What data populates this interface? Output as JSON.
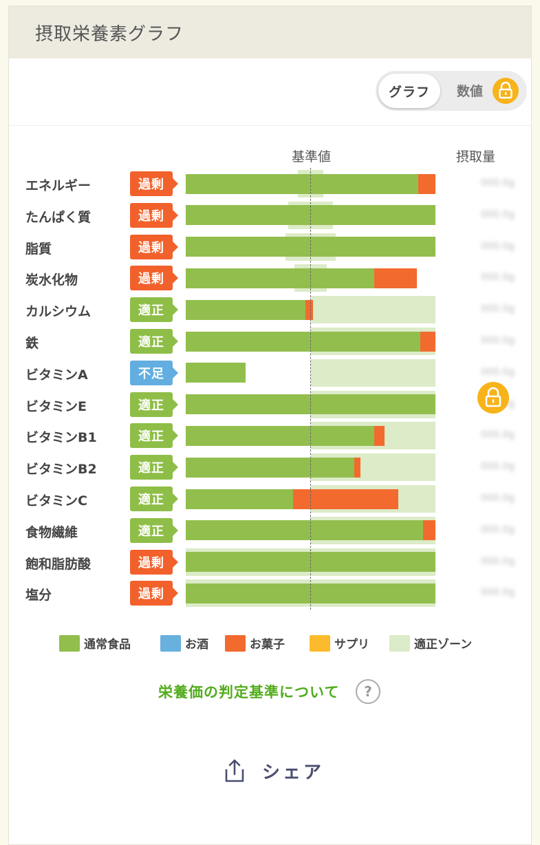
{
  "page": {
    "title": "摂取栄養素グラフ",
    "toggle": {
      "graph_label": "グラフ",
      "number_label": "数値",
      "lock_icon": "lock-icon"
    },
    "columns": {
      "reference": "基準値",
      "intake": "摂取量"
    },
    "criteria_link": "栄養価の判定基準について",
    "help_icon_glyph": "?",
    "share_label": "シェア"
  },
  "colors": {
    "normal_food": "#92be4d",
    "alcohol": "#68b0de",
    "snacks": "#f26a2e",
    "supplement": "#fbbb2c",
    "zone": "#dcebc8",
    "status_excess": "#f2612b",
    "status_ok": "#8ebe47",
    "status_low": "#62aee0",
    "lock": "#f7b31a"
  },
  "chart_data": {
    "type": "bar",
    "orientation": "horizontal",
    "stacked": true,
    "reference_line": 100,
    "xlim": [
      0,
      200
    ],
    "categories": [
      "エネルギー",
      "たんぱく質",
      "脂質",
      "炭水化物",
      "カルシウム",
      "鉄",
      "ビタミンA",
      "ビタミンE",
      "ビタミンB1",
      "ビタミンB2",
      "ビタミンC",
      "食物繊維",
      "飽和脂肪酸",
      "塩分"
    ],
    "status": [
      "過剰",
      "過剰",
      "過剰",
      "過剰",
      "適正",
      "適正",
      "不足",
      "適正",
      "適正",
      "適正",
      "適正",
      "適正",
      "過剰",
      "過剰"
    ],
    "status_type": [
      "excess",
      "excess",
      "excess",
      "excess",
      "ok",
      "ok",
      "low",
      "ok",
      "ok",
      "ok",
      "ok",
      "ok",
      "excess",
      "excess"
    ],
    "series": [
      {
        "name": "通常食品",
        "color": "#92be4d",
        "values": [
          186,
          200,
          200,
          151,
          96,
          188,
          48,
          200,
          151,
          135,
          86,
          190,
          200,
          200
        ]
      },
      {
        "name": "お酒",
        "color": "#68b0de",
        "values": [
          0,
          0,
          0,
          0,
          0,
          0,
          0,
          0,
          0,
          0,
          0,
          0,
          0,
          0
        ]
      },
      {
        "name": "お菓子",
        "color": "#f26a2e",
        "values": [
          14,
          0,
          0,
          34,
          6,
          12,
          0,
          0,
          8,
          5,
          84,
          10,
          0,
          0
        ]
      },
      {
        "name": "サプリ",
        "color": "#fbbb2c",
        "values": [
          0,
          0,
          0,
          0,
          0,
          0,
          0,
          0,
          0,
          0,
          0,
          0,
          0,
          0
        ]
      }
    ],
    "zones": [
      [
        90,
        110
      ],
      [
        82,
        118
      ],
      [
        80,
        120
      ],
      [
        87,
        113
      ],
      [
        100,
        200
      ],
      [
        100,
        200
      ],
      [
        100,
        200
      ],
      [
        100,
        200
      ],
      [
        100,
        200
      ],
      [
        100,
        200
      ],
      [
        100,
        200
      ],
      [
        100,
        200
      ],
      [
        0,
        200
      ],
      [
        0,
        200
      ]
    ],
    "zone_name": "適正ゾーン",
    "legend": [
      "通常食品",
      "お酒",
      "お菓子",
      "サプリ",
      "適正ゾーン"
    ],
    "legend_placement": "bottom",
    "intake_values_hidden": true
  }
}
